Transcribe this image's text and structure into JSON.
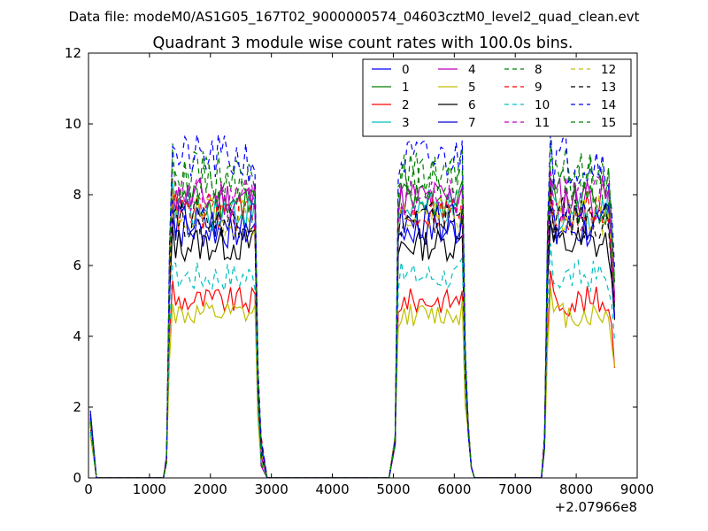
{
  "chart_data": {
    "type": "line",
    "suptitle": "Data file: modeM0/AS1G05_167T02_9000000574_04603cztM0_level2_quad_clean.evt",
    "title": "Quadrant 3 module wise count rates with 100.0s bins.",
    "xlabel": "",
    "ylabel": "",
    "xlim": [
      0,
      9000
    ],
    "ylim": [
      0,
      12
    ],
    "xticks": [
      0,
      1000,
      2000,
      3000,
      4000,
      5000,
      6000,
      7000,
      8000,
      9000
    ],
    "yticks": [
      0,
      2,
      4,
      6,
      8,
      10,
      12
    ],
    "x_offset_label": "+2.07966e8",
    "grid": false,
    "legend_position": "top-right",
    "legend_columns": 4,
    "series": [
      {
        "name": "0",
        "color": "#0000ff",
        "dash": false,
        "level": 7.0,
        "start": 1.8
      },
      {
        "name": "1",
        "color": "#008000",
        "dash": false,
        "level": 7.8,
        "start": 1.6
      },
      {
        "name": "2",
        "color": "#ff0000",
        "dash": false,
        "level": 5.0,
        "start": 1.5
      },
      {
        "name": "3",
        "color": "#00bfbf",
        "dash": false,
        "level": 7.6,
        "start": 1.7
      },
      {
        "name": "4",
        "color": "#bf00bf",
        "dash": false,
        "level": 7.9,
        "start": 1.6
      },
      {
        "name": "5",
        "color": "#bfbf00",
        "dash": false,
        "level": 4.6,
        "start": 1.2
      },
      {
        "name": "6",
        "color": "#000000",
        "dash": false,
        "level": 6.6,
        "start": 1.5
      },
      {
        "name": "7",
        "color": "#0000cc",
        "dash": false,
        "level": 7.2,
        "start": 1.9
      },
      {
        "name": "8",
        "color": "#008000",
        "dash": true,
        "level": 8.6,
        "start": 1.6
      },
      {
        "name": "9",
        "color": "#ff0000",
        "dash": true,
        "level": 7.5,
        "start": 1.5
      },
      {
        "name": "10",
        "color": "#00bfbf",
        "dash": true,
        "level": 5.7,
        "start": 1.3
      },
      {
        "name": "11",
        "color": "#bf00bf",
        "dash": true,
        "level": 7.9,
        "start": 1.6
      },
      {
        "name": "12",
        "color": "#bfbf00",
        "dash": true,
        "level": 7.4,
        "start": 1.5
      },
      {
        "name": "13",
        "color": "#000000",
        "dash": true,
        "level": 7.3,
        "start": 1.6
      },
      {
        "name": "14",
        "color": "#0000ff",
        "dash": true,
        "level": 9.0,
        "start": 1.7
      },
      {
        "name": "15",
        "color": "#008000",
        "dash": true,
        "level": 8.4,
        "start": 1.6
      }
    ]
  }
}
